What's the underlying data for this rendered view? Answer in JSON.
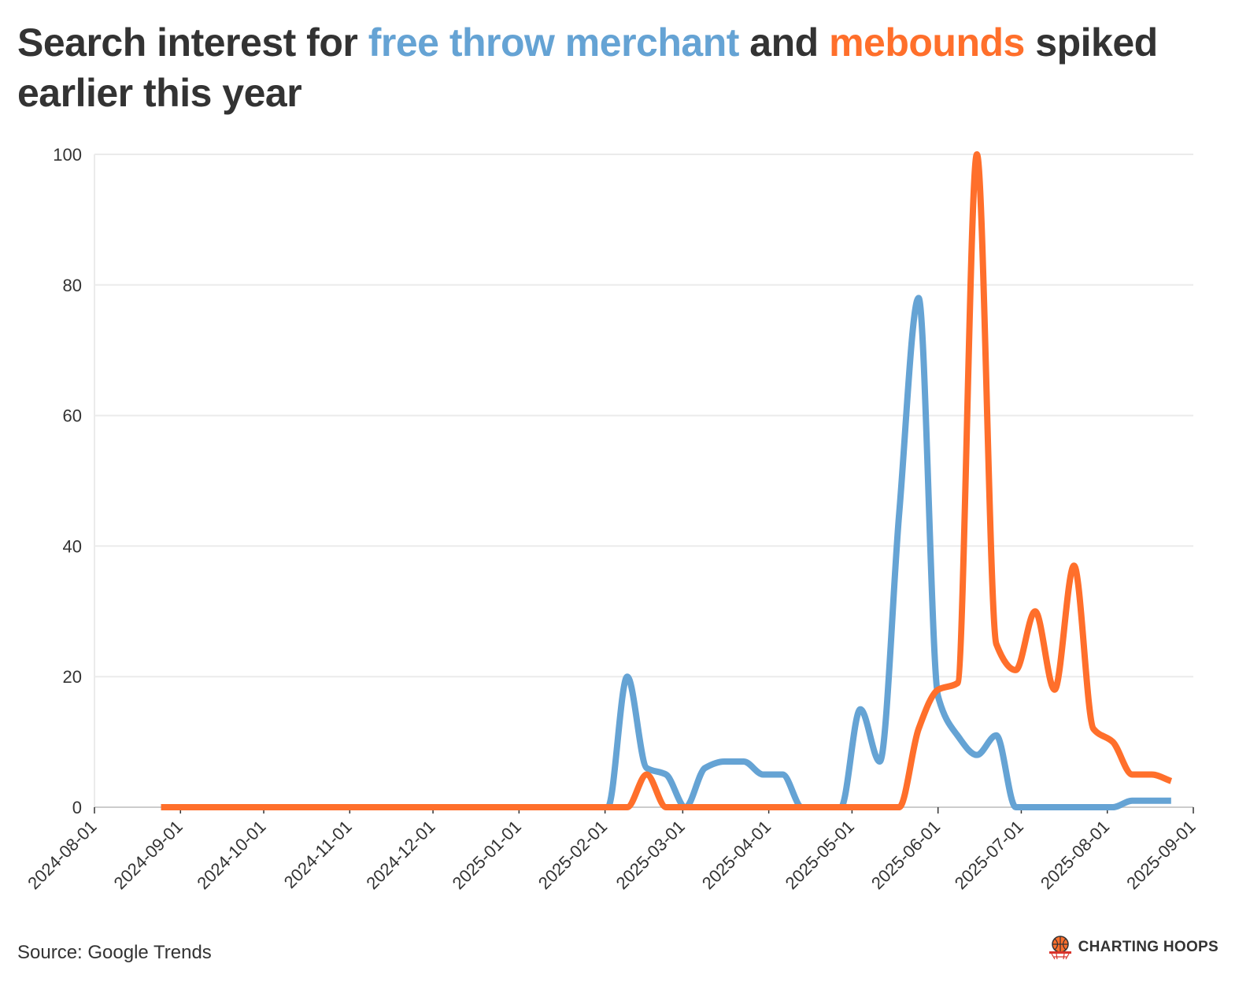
{
  "title": {
    "part1": "Search interest for ",
    "term1": "free throw merchant",
    "part2": " and ",
    "term2": "mebounds",
    "part3": " spiked earlier this year"
  },
  "source": "Source: Google Trends",
  "brand": {
    "name": "CHARTING HOOPS",
    "icon": "basketball-hoop-icon"
  },
  "colors": {
    "free_throw_merchant": "#65a3d4",
    "mebounds": "#ff6f2b",
    "grid": "#ebebeb",
    "text": "#333333"
  },
  "chart_data": {
    "type": "line",
    "title": "Search interest for free throw merchant and mebounds spiked earlier this year",
    "xlabel": "",
    "ylabel": "",
    "xlim": [
      "2024-08-01",
      "2025-09-01"
    ],
    "ylim": [
      0,
      100
    ],
    "yticks": [
      0,
      20,
      40,
      60,
      80,
      100
    ],
    "xticks": [
      "2024-08-01",
      "2024-09-01",
      "2024-10-01",
      "2024-11-01",
      "2024-12-01",
      "2025-01-01",
      "2025-02-01",
      "2025-03-01",
      "2025-04-01",
      "2025-05-01",
      "2025-06-01",
      "2025-07-01",
      "2025-08-01",
      "2025-09-01"
    ],
    "grid": "horizontal",
    "legend": "title",
    "x": [
      "2024-08-25",
      "2024-09-01",
      "2024-09-08",
      "2024-09-15",
      "2024-09-22",
      "2024-09-29",
      "2024-10-06",
      "2024-10-13",
      "2024-10-20",
      "2024-10-27",
      "2024-11-03",
      "2024-11-10",
      "2024-11-17",
      "2024-11-24",
      "2024-12-01",
      "2024-12-08",
      "2024-12-15",
      "2024-12-22",
      "2024-12-29",
      "2025-01-05",
      "2025-01-12",
      "2025-01-19",
      "2025-01-26",
      "2025-02-02",
      "2025-02-09",
      "2025-02-16",
      "2025-02-23",
      "2025-03-02",
      "2025-03-09",
      "2025-03-16",
      "2025-03-23",
      "2025-03-30",
      "2025-04-06",
      "2025-04-13",
      "2025-04-20",
      "2025-04-27",
      "2025-05-04",
      "2025-05-11",
      "2025-05-18",
      "2025-05-25",
      "2025-06-01",
      "2025-06-08",
      "2025-06-15",
      "2025-06-22",
      "2025-06-29",
      "2025-07-06",
      "2025-07-13",
      "2025-07-20",
      "2025-07-27",
      "2025-08-03",
      "2025-08-10",
      "2025-08-17",
      "2025-08-24"
    ],
    "series": [
      {
        "name": "free throw merchant",
        "color": "#65a3d4",
        "values": [
          0,
          0,
          0,
          0,
          0,
          0,
          0,
          0,
          0,
          0,
          0,
          0,
          0,
          0,
          0,
          0,
          0,
          0,
          0,
          0,
          0,
          0,
          0,
          0,
          20,
          6,
          5,
          0,
          6,
          7,
          7,
          5,
          5,
          0,
          0,
          0,
          15,
          7,
          45,
          78,
          17,
          11,
          8,
          11,
          0,
          0,
          0,
          0,
          0,
          0,
          1,
          1,
          1
        ]
      },
      {
        "name": "mebounds",
        "color": "#ff6f2b",
        "values": [
          0,
          0,
          0,
          0,
          0,
          0,
          0,
          0,
          0,
          0,
          0,
          0,
          0,
          0,
          0,
          0,
          0,
          0,
          0,
          0,
          0,
          0,
          0,
          0,
          0,
          5,
          0,
          0,
          0,
          0,
          0,
          0,
          0,
          0,
          0,
          0,
          0,
          0,
          0,
          12,
          18,
          19,
          100,
          25,
          21,
          30,
          18,
          37,
          12,
          10,
          5,
          5,
          4
        ]
      }
    ]
  }
}
